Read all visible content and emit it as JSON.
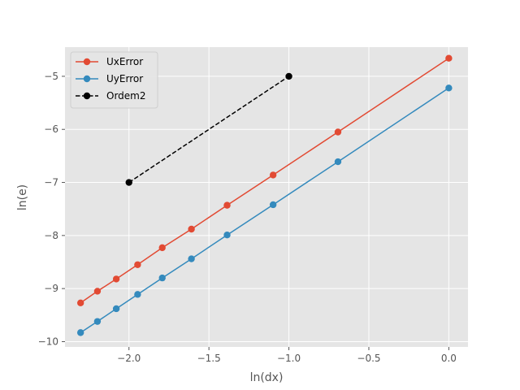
{
  "chart_data": {
    "type": "line",
    "title": "",
    "xlabel": "ln(dx)",
    "ylabel": "ln(e)",
    "xlim": [
      -2.4,
      0.12
    ],
    "ylim": [
      -10.1,
      -4.45
    ],
    "x_ticks": [
      -2.0,
      -1.5,
      -1.0,
      -0.5,
      0.0
    ],
    "x_tick_labels": [
      "−2.0",
      "−1.5",
      "−1.0",
      "−0.5",
      "0.0"
    ],
    "y_ticks": [
      -10,
      -9,
      -8,
      -7,
      -6,
      -5
    ],
    "y_tick_labels": [
      "−10",
      "−9",
      "−8",
      "−7",
      "−6",
      "−5"
    ],
    "grid": true,
    "legend_position": "top-left",
    "series": [
      {
        "name": "UxError",
        "color": "#E24A33",
        "style": "solid",
        "marker": "circle",
        "x": [
          -2.3026,
          -2.1972,
          -2.0794,
          -1.9459,
          -1.7918,
          -1.6094,
          -1.3863,
          -1.0986,
          -0.6931,
          0.0
        ],
        "y": [
          -9.27,
          -9.05,
          -8.82,
          -8.55,
          -8.23,
          -7.88,
          -7.43,
          -6.86,
          -6.05,
          -4.66
        ]
      },
      {
        "name": "UyError",
        "color": "#348ABD",
        "style": "solid",
        "marker": "circle",
        "x": [
          -2.3026,
          -2.1972,
          -2.0794,
          -1.9459,
          -1.7918,
          -1.6094,
          -1.3863,
          -1.0986,
          -0.6931,
          0.0
        ],
        "y": [
          -9.83,
          -9.62,
          -9.38,
          -9.11,
          -8.8,
          -8.44,
          -7.99,
          -7.42,
          -6.61,
          -5.22
        ]
      },
      {
        "name": "Ordem2",
        "color": "#000000",
        "style": "dashed",
        "marker": "circle",
        "x": [
          -2.0,
          -1.0
        ],
        "y": [
          -7.0,
          -5.0
        ]
      }
    ]
  }
}
